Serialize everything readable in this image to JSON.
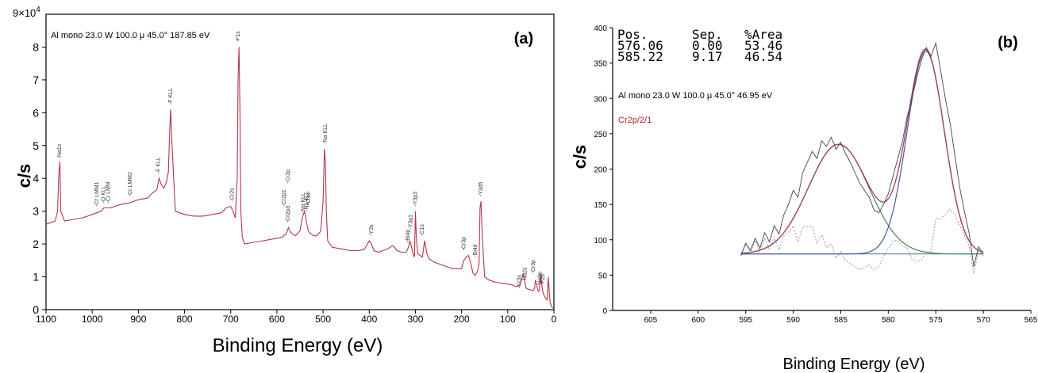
{
  "colors": {
    "survey_line": "#b03848",
    "raw_spectrum": "#444444",
    "fit_envelope": "#a0405a",
    "peak_left": "#3c8a5a",
    "peak_right": "#4a5aa0",
    "background": "#6a8aa0",
    "residual": "#9a9a9a",
    "axis": "#000000",
    "region_label": "#b02030"
  },
  "chart_data": [
    {
      "type": "line",
      "panel_label": "(a)",
      "acquisition": "Al mono  23.0 W  100.0 μ  45.0°  187.85 eV",
      "xlabel": "Binding Energy (eV)",
      "ylabel": "c/s",
      "xlim": [
        1100,
        0
      ],
      "ylim": [
        0,
        90000
      ],
      "y_exponent_label": "9×10",
      "y_exponent_power": "4",
      "x_ticks": [
        "1100",
        "1000",
        "900",
        "800",
        "700",
        "600",
        "500",
        "400",
        "300",
        "200",
        "100",
        "0"
      ],
      "y_ticks": [
        "0",
        "1",
        "2",
        "3",
        "4",
        "5",
        "6",
        "7",
        "8"
      ],
      "grid": false,
      "series": [
        {
          "x": [
            1100,
            1090,
            1080,
            1075,
            1072,
            1070,
            1068,
            1060,
            1040,
            1020,
            1000,
            990,
            980,
            975,
            960,
            940,
            920,
            900,
            880,
            870,
            860,
            855,
            850,
            845,
            840,
            835,
            832,
            830,
            827,
            820,
            800,
            780,
            760,
            740,
            720,
            710,
            700,
            695,
            690,
            686,
            684,
            682,
            680,
            678,
            675,
            670,
            650,
            630,
            610,
            590,
            580,
            575,
            570,
            560,
            550,
            545,
            540,
            535,
            532,
            530,
            525,
            520,
            515,
            510,
            505,
            500,
            497,
            495,
            493,
            490,
            480,
            460,
            440,
            420,
            410,
            400,
            395,
            390,
            380,
            370,
            360,
            350,
            345,
            340,
            330,
            320,
            315,
            312,
            310,
            305,
            302,
            300,
            298,
            295,
            290,
            285,
            280,
            275,
            270,
            260,
            250,
            240,
            230,
            220,
            210,
            200,
            195,
            190,
            185,
            180,
            175,
            170,
            165,
            162,
            160,
            158,
            155,
            150,
            140,
            130,
            120,
            110,
            100,
            90,
            85,
            80,
            75,
            70,
            67,
            65,
            63,
            60,
            55,
            50,
            45,
            42,
            40,
            38,
            35,
            33,
            31,
            30,
            28,
            25,
            22,
            20,
            18,
            15,
            12,
            10,
            8,
            5,
            2
          ],
          "y": [
            26000,
            26500,
            27000,
            30000,
            42000,
            45000,
            30000,
            27000,
            27500,
            28000,
            29000,
            29500,
            30000,
            31000,
            31000,
            32000,
            32500,
            33500,
            34000,
            35500,
            36500,
            40000,
            38000,
            37000,
            38500,
            42000,
            55000,
            61000,
            50000,
            30000,
            29000,
            28500,
            28500,
            29000,
            29500,
            31000,
            31500,
            30000,
            28000,
            40000,
            70000,
            80000,
            60000,
            30000,
            22000,
            20000,
            20500,
            21000,
            21500,
            22000,
            23000,
            25000,
            23500,
            22500,
            24000,
            28000,
            30000,
            26000,
            24000,
            23500,
            23000,
            22500,
            22500,
            23000,
            24000,
            33000,
            49000,
            45000,
            30000,
            21000,
            19000,
            18500,
            18000,
            18000,
            18500,
            21000,
            20000,
            18000,
            17500,
            18000,
            18500,
            19500,
            19000,
            18000,
            17500,
            17500,
            19000,
            21000,
            20000,
            17000,
            16000,
            30000,
            22000,
            17000,
            16500,
            16000,
            21000,
            17000,
            15500,
            14500,
            14000,
            13500,
            13000,
            12500,
            12500,
            12500,
            15000,
            16000,
            16500,
            14000,
            11000,
            10500,
            12000,
            14000,
            31000,
            33000,
            22000,
            10000,
            9000,
            8500,
            8200,
            8000,
            7800,
            7500,
            7200,
            7000,
            7500,
            9000,
            11000,
            10000,
            8500,
            6500,
            6200,
            6000,
            5800,
            6500,
            9000,
            8000,
            6000,
            5500,
            6000,
            11000,
            10000,
            6000,
            4500,
            4000,
            3500,
            3000,
            10000,
            5000,
            2000,
            1000,
            500
          ]
        }
      ],
      "annotations": [
        {
          "label": "-Na1s",
          "x": 1071,
          "y": 45000
        },
        {
          "label": "-Cr LMM1",
          "x": 990,
          "y": 30500
        },
        {
          "label": "-O KLL",
          "x": 975,
          "y": 31500
        },
        {
          "label": "-Cr LMM",
          "x": 965,
          "y": 31500
        },
        {
          "label": "-Cr LMM2",
          "x": 918,
          "y": 33500
        },
        {
          "label": "-F KLL",
          "x": 857,
          "y": 40500
        },
        {
          "label": "-F KLL",
          "x": 830,
          "y": 61500
        },
        {
          "label": "-Cr2s",
          "x": 697,
          "y": 32000
        },
        {
          "label": "-F1s",
          "x": 684,
          "y": 80500
        },
        {
          "label": "-Cr2p",
          "x": 576,
          "y": 37500
        },
        {
          "label": "-Cr2p1",
          "x": 584,
          "y": 30500
        },
        {
          "label": "-Cr2p3",
          "x": 576,
          "y": 25500
        },
        {
          "label": "-Na KLL",
          "x": 543,
          "y": 28500
        },
        {
          "label": "-Na KLL",
          "x": 535,
          "y": 29000
        },
        {
          "label": "-O1s",
          "x": 531,
          "y": 31000
        },
        {
          "label": "-Na KLL",
          "x": 495,
          "y": 49500
        },
        {
          "label": "-Y3s",
          "x": 395,
          "y": 21500
        },
        {
          "label": "-Bi4p",
          "x": 316,
          "y": 19500
        },
        {
          "label": "-Y3p1",
          "x": 310,
          "y": 23500
        },
        {
          "label": "-Y3p3",
          "x": 300,
          "y": 30500
        },
        {
          "label": "-C1s",
          "x": 285,
          "y": 21500
        },
        {
          "label": "-Cr3p",
          "x": 195,
          "y": 17000
        },
        {
          "label": "-Bi4d",
          "x": 170,
          "y": 15000
        },
        {
          "label": "-Y3d5",
          "x": 158,
          "y": 33500
        },
        {
          "label": "-Cr3s",
          "x": 75,
          "y": 5500
        },
        {
          "label": "Na2s",
          "x": 63,
          "y": 8000
        },
        {
          "label": "-Cr3p",
          "x": 45,
          "y": 10000
        },
        {
          "label": "-Na2p",
          "x": 30,
          "y": 6000
        },
        {
          "label": "F2s",
          "x": 24,
          "y": 7000
        }
      ]
    },
    {
      "type": "line",
      "panel_label": "(b)",
      "acquisition": "Al mono  23.0 W  100.0 μ  45.0°  46.95 eV",
      "region_label": "Cr2p/2/1",
      "xlabel": "Binding Energy (eV)",
      "ylabel": "c/s",
      "xlim": [
        609,
        565
      ],
      "ylim": [
        0,
        400
      ],
      "x_ticks": [
        "605",
        "600",
        "595",
        "590",
        "585",
        "580",
        "575",
        "570",
        "565"
      ],
      "y_ticks": [
        "0",
        "50",
        "100",
        "150",
        "200",
        "250",
        "300",
        "350",
        "400"
      ],
      "grid": false,
      "fit_table": {
        "headers": [
          "Pos.",
          "Sep.",
          "%Area"
        ],
        "rows": [
          [
            "576.06",
            "0.00",
            "53.46"
          ],
          [
            "585.22",
            "9.17",
            "46.54"
          ]
        ]
      },
      "fit_parameters": {
        "background_counts": 80,
        "components": [
          {
            "position": 576.06,
            "height": 287,
            "fwhm": 4.6
          },
          {
            "position": 585.22,
            "height": 155,
            "fwhm": 7.5
          }
        ]
      },
      "series": [
        {
          "name": "raw",
          "x": [
            595.5,
            595,
            594.5,
            594,
            593.5,
            593,
            592.5,
            592,
            591.5,
            591,
            590.5,
            590,
            589.5,
            589,
            588.5,
            588,
            587.5,
            587,
            586.5,
            586,
            585.5,
            585,
            584.5,
            584,
            583.5,
            583,
            582.5,
            582,
            581.5,
            581,
            580.5,
            580,
            579.5,
            579,
            578.5,
            578,
            577.5,
            577,
            576.5,
            576,
            575.5,
            575,
            574.5,
            574,
            573.5,
            573,
            572.5,
            572,
            571.5,
            571,
            570.5,
            570
          ],
          "y": [
            78,
            95,
            85,
            102,
            88,
            110,
            97,
            120,
            108,
            135,
            150,
            170,
            160,
            195,
            210,
            225,
            215,
            240,
            232,
            245,
            228,
            238,
            222,
            210,
            195,
            180,
            170,
            160,
            142,
            138,
            150,
            165,
            190,
            215,
            240,
            275,
            300,
            330,
            355,
            372,
            360,
            378,
            340,
            300,
            265,
            220,
            175,
            140,
            110,
            62,
            90,
            80
          ]
        }
      ]
    }
  ]
}
